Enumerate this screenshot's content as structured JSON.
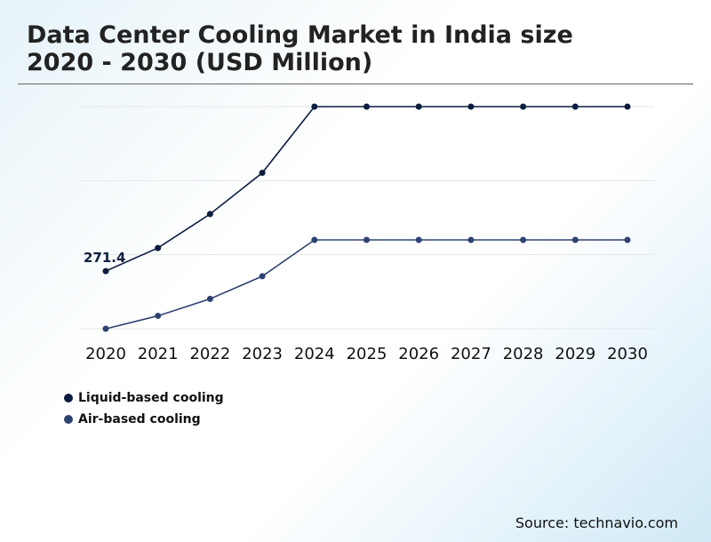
{
  "header": {
    "title_line1": "Data Center Cooling Market in India size",
    "title_line2": "2020 - 2030 (USD Million)"
  },
  "chart_data": {
    "type": "line",
    "x": [
      "2020",
      "2021",
      "2022",
      "2023",
      "2024",
      "2025",
      "2026",
      "2027",
      "2028",
      "2029",
      "2030"
    ],
    "series": [
      {
        "name": "Liquid-based cooling",
        "color": "#0b1d3f",
        "values": [
          271.4,
          300,
          342,
          393,
          475,
          475,
          475,
          475,
          475,
          475,
          475
        ]
      },
      {
        "name": "Air-based cooling",
        "color": "#2e4272",
        "values": [
          200,
          216,
          237,
          265,
          310,
          310,
          310,
          310,
          310,
          310,
          310
        ]
      }
    ],
    "annotations": [
      {
        "x": "2020",
        "series": 0,
        "text": "271.4"
      }
    ],
    "ylim": [
      200,
      475
    ],
    "grid": true,
    "legend_position": "bottom-left"
  },
  "footer": {
    "source": "Source: technavio.com"
  }
}
